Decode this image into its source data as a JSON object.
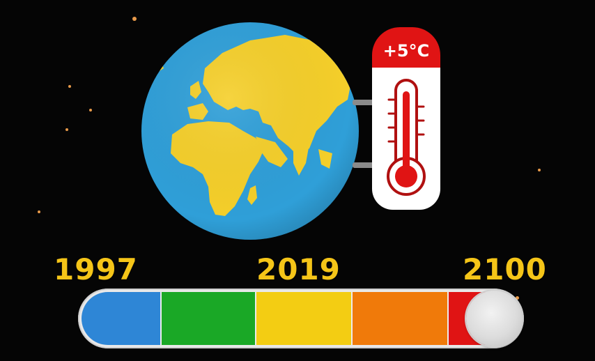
{
  "thermometer": {
    "label": "+5°C"
  },
  "timeline": {
    "years": [
      "1997",
      "2019",
      "2100"
    ],
    "segments": [
      {
        "color": "#2e86d6"
      },
      {
        "color": "#1aa826"
      },
      {
        "color": "#f3cd13"
      },
      {
        "color": "#f07a0a"
      },
      {
        "color": "#e01414"
      }
    ],
    "progress_percent": 100
  },
  "icons": {
    "globe": "earth-globe-icon",
    "thermometer": "thermometer-icon"
  },
  "colors": {
    "background": "#050505",
    "year_text": "#f5c518",
    "ocean": "#2f9fd8",
    "land": "#f5cf2a",
    "thermo_red": "#e01414"
  }
}
